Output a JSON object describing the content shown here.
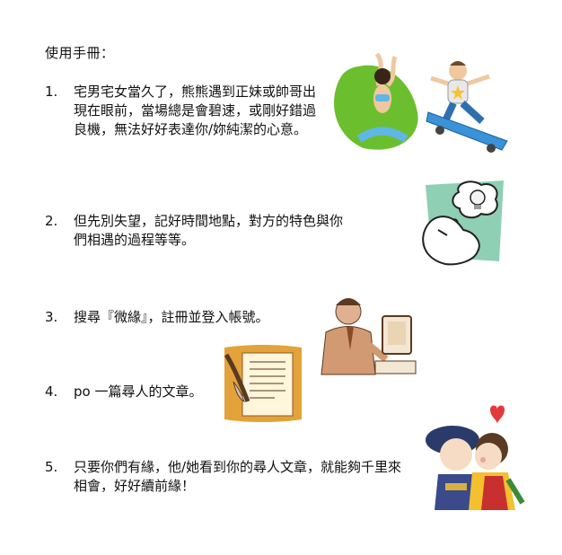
{
  "document": {
    "title": "使用手冊：",
    "items": [
      {
        "number": "1.",
        "text": "宅男宅女當久了，熊熊遇到正妹或帥哥出現在眼前，當場總是會碧速，或剛好錯過良機，無法好好表達你/妳純潔的心意。"
      },
      {
        "number": "2.",
        "text": "但先別失望，記好時間地點，對方的特色與你們相遇的過程等等。"
      },
      {
        "number": "3.",
        "text": "搜尋『微緣』，註冊並登入帳號。"
      },
      {
        "number": "4.",
        "text": "po 一篇尋人的文章。"
      },
      {
        "number": "5.",
        "text": "只要你們有緣，他/她看到你的尋人文章，就能夠千里來相會，好好續前緣！"
      }
    ]
  },
  "illustrations": {
    "clip1": "woman-yoga-and-skateboarder-clipart",
    "clip2": "thinking-person-lightbulb-clipart",
    "clip3": "man-at-computer-clipart",
    "clip4": "quill-writing-letter-clipart",
    "clip5": "kissing-couple-clipart"
  }
}
